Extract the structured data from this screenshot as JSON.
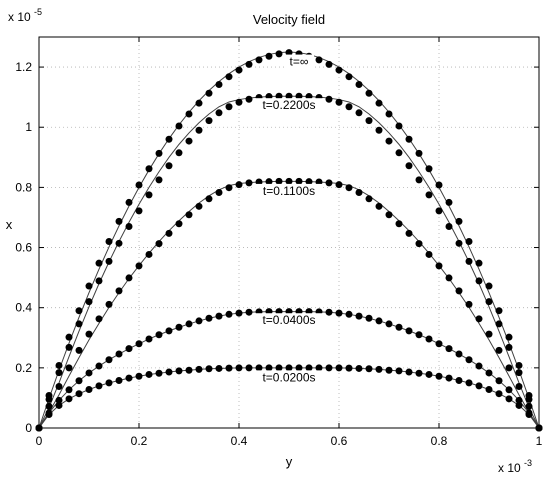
{
  "chart_data": {
    "type": "line",
    "title": "Velocity field",
    "xlabel": "y",
    "ylabel": "x",
    "xlim": [
      0,
      1
    ],
    "ylim": [
      0,
      1.3
    ],
    "x_multiplier": "x 10",
    "x_multiplier_exp": "-3",
    "y_multiplier": "x 10",
    "y_multiplier_exp": "-5",
    "x_ticks": [
      0,
      0.2,
      0.4,
      0.6,
      0.8,
      1
    ],
    "x_tick_labels": [
      "0",
      "0.2",
      "0.4",
      "0.6",
      "0.8",
      "1"
    ],
    "y_ticks": [
      0,
      0.2,
      0.4,
      0.6,
      0.8,
      1,
      1.2
    ],
    "y_tick_labels": [
      "0",
      "0.2",
      "0.4",
      "0.6",
      "0.8",
      "1",
      "1.2"
    ],
    "grid": "dotted",
    "legend": "none",
    "x": [
      0,
      0.02,
      0.04,
      0.06,
      0.08,
      0.1,
      0.12,
      0.14,
      0.16,
      0.18,
      0.2,
      0.22,
      0.24,
      0.26,
      0.28,
      0.3,
      0.32,
      0.34,
      0.36,
      0.38,
      0.4,
      0.42,
      0.44,
      0.46,
      0.48,
      0.5,
      0.52,
      0.54,
      0.56,
      0.58,
      0.6,
      0.62,
      0.64,
      0.66,
      0.68,
      0.7,
      0.72,
      0.74,
      0.76,
      0.78,
      0.8,
      0.82,
      0.84,
      0.86,
      0.88,
      0.9,
      0.92,
      0.94,
      0.96,
      0.98,
      1
    ],
    "series": [
      {
        "name": "t=∞",
        "line_values": [
          0,
          0.098,
          0.192,
          0.282,
          0.368,
          0.45,
          0.528,
          0.602,
          0.672,
          0.738,
          0.8,
          0.858,
          0.912,
          0.962,
          1.008,
          1.05,
          1.088,
          1.122,
          1.152,
          1.178,
          1.2,
          1.218,
          1.232,
          1.242,
          1.248,
          1.25,
          1.248,
          1.242,
          1.232,
          1.218,
          1.2,
          1.178,
          1.152,
          1.122,
          1.088,
          1.05,
          1.008,
          0.962,
          0.912,
          0.858,
          0.8,
          0.738,
          0.672,
          0.602,
          0.528,
          0.45,
          0.368,
          0.282,
          0.192,
          0.098,
          0
        ],
        "marker_values": [
          0,
          0.108,
          0.208,
          0.302,
          0.39,
          0.472,
          0.548,
          0.62,
          0.687,
          0.75,
          0.808,
          0.862,
          0.913,
          0.96,
          1.004,
          1.044,
          1.08,
          1.113,
          1.142,
          1.168,
          1.19,
          1.209,
          1.224,
          1.236,
          1.244,
          1.248,
          1.244,
          1.236,
          1.224,
          1.209,
          1.19,
          1.168,
          1.142,
          1.113,
          1.08,
          1.044,
          1.004,
          0.96,
          0.913,
          0.862,
          0.808,
          0.75,
          0.687,
          0.62,
          0.548,
          0.472,
          0.39,
          0.302,
          0.208,
          0.108,
          0
        ],
        "label": "t=∞",
        "label_x": 0.52,
        "label_y": 1.205
      },
      {
        "name": "t=0.2200s",
        "line_values": [
          0,
          0.068,
          0.15,
          0.237,
          0.322,
          0.403,
          0.48,
          0.552,
          0.62,
          0.684,
          0.744,
          0.8,
          0.852,
          0.9,
          0.943,
          0.981,
          1.015,
          1.044,
          1.068,
          1.084,
          1.092,
          1.097,
          1.1,
          1.102,
          1.103,
          1.103,
          1.103,
          1.102,
          1.1,
          1.097,
          1.092,
          1.084,
          1.068,
          1.044,
          1.015,
          0.981,
          0.943,
          0.9,
          0.852,
          0.8,
          0.744,
          0.684,
          0.62,
          0.552,
          0.48,
          0.403,
          0.322,
          0.237,
          0.15,
          0.068,
          0
        ],
        "marker_values": [
          0,
          0.095,
          0.184,
          0.268,
          0.346,
          0.42,
          0.489,
          0.554,
          0.614,
          0.67,
          0.722,
          0.775,
          0.825,
          0.872,
          0.915,
          0.954,
          0.99,
          1.022,
          1.048,
          1.068,
          1.083,
          1.093,
          1.099,
          1.102,
          1.103,
          1.103,
          1.103,
          1.102,
          1.099,
          1.093,
          1.083,
          1.068,
          1.048,
          1.022,
          0.99,
          0.954,
          0.915,
          0.872,
          0.825,
          0.775,
          0.722,
          0.67,
          0.614,
          0.554,
          0.489,
          0.42,
          0.346,
          0.268,
          0.184,
          0.095,
          0
        ],
        "label": "t=0.2200s",
        "label_x": 0.5,
        "label_y": 1.06
      },
      {
        "name": "t=0.1100s",
        "line_values": [
          0,
          0.052,
          0.11,
          0.173,
          0.234,
          0.293,
          0.348,
          0.401,
          0.45,
          0.497,
          0.54,
          0.581,
          0.62,
          0.656,
          0.689,
          0.72,
          0.748,
          0.772,
          0.792,
          0.806,
          0.813,
          0.816,
          0.818,
          0.819,
          0.82,
          0.82,
          0.82,
          0.819,
          0.818,
          0.816,
          0.813,
          0.806,
          0.792,
          0.772,
          0.748,
          0.72,
          0.689,
          0.656,
          0.62,
          0.581,
          0.54,
          0.497,
          0.45,
          0.401,
          0.348,
          0.293,
          0.234,
          0.173,
          0.11,
          0.052,
          0
        ],
        "marker_values": [
          0,
          0.072,
          0.138,
          0.2,
          0.258,
          0.312,
          0.363,
          0.411,
          0.456,
          0.499,
          0.539,
          0.577,
          0.613,
          0.647,
          0.679,
          0.709,
          0.737,
          0.762,
          0.783,
          0.799,
          0.809,
          0.815,
          0.818,
          0.819,
          0.82,
          0.82,
          0.82,
          0.819,
          0.818,
          0.815,
          0.809,
          0.799,
          0.783,
          0.762,
          0.737,
          0.709,
          0.679,
          0.647,
          0.613,
          0.577,
          0.539,
          0.499,
          0.456,
          0.411,
          0.363,
          0.312,
          0.258,
          0.2,
          0.138,
          0.072,
          0
        ],
        "label": "t=0.1100s",
        "label_x": 0.5,
        "label_y": 0.775
      },
      {
        "name": "t=0.0400s",
        "line_values": [
          0,
          0.05,
          0.092,
          0.127,
          0.157,
          0.183,
          0.206,
          0.227,
          0.246,
          0.264,
          0.28,
          0.296,
          0.31,
          0.323,
          0.335,
          0.346,
          0.356,
          0.365,
          0.372,
          0.378,
          0.382,
          0.385,
          0.386,
          0.387,
          0.387,
          0.387,
          0.387,
          0.387,
          0.386,
          0.385,
          0.382,
          0.378,
          0.372,
          0.365,
          0.356,
          0.346,
          0.335,
          0.323,
          0.31,
          0.296,
          0.28,
          0.264,
          0.246,
          0.227,
          0.206,
          0.183,
          0.157,
          0.127,
          0.092,
          0.05,
          0
        ],
        "marker_values": [
          0,
          0.05,
          0.092,
          0.127,
          0.157,
          0.183,
          0.206,
          0.227,
          0.246,
          0.264,
          0.28,
          0.296,
          0.31,
          0.323,
          0.335,
          0.346,
          0.356,
          0.365,
          0.372,
          0.378,
          0.382,
          0.385,
          0.386,
          0.387,
          0.387,
          0.387,
          0.387,
          0.387,
          0.386,
          0.385,
          0.382,
          0.378,
          0.372,
          0.365,
          0.356,
          0.346,
          0.335,
          0.323,
          0.31,
          0.296,
          0.28,
          0.264,
          0.246,
          0.227,
          0.206,
          0.183,
          0.157,
          0.127,
          0.092,
          0.05,
          0
        ],
        "label": "t=0.0400s",
        "label_x": 0.5,
        "label_y": 0.345
      },
      {
        "name": "t=0.0200s",
        "line_values": [
          0,
          0.045,
          0.075,
          0.097,
          0.114,
          0.128,
          0.14,
          0.15,
          0.158,
          0.166,
          0.172,
          0.178,
          0.182,
          0.186,
          0.19,
          0.192,
          0.195,
          0.197,
          0.198,
          0.199,
          0.2,
          0.2,
          0.2,
          0.2,
          0.2,
          0.2,
          0.2,
          0.2,
          0.2,
          0.2,
          0.2,
          0.199,
          0.198,
          0.197,
          0.195,
          0.192,
          0.19,
          0.186,
          0.182,
          0.178,
          0.172,
          0.166,
          0.158,
          0.15,
          0.14,
          0.128,
          0.114,
          0.097,
          0.075,
          0.045,
          0
        ],
        "marker_values": [
          0,
          0.045,
          0.075,
          0.097,
          0.114,
          0.128,
          0.14,
          0.15,
          0.158,
          0.166,
          0.172,
          0.178,
          0.182,
          0.186,
          0.19,
          0.192,
          0.195,
          0.197,
          0.198,
          0.199,
          0.2,
          0.2,
          0.2,
          0.2,
          0.2,
          0.2,
          0.2,
          0.2,
          0.2,
          0.2,
          0.2,
          0.199,
          0.198,
          0.197,
          0.195,
          0.192,
          0.19,
          0.186,
          0.182,
          0.178,
          0.172,
          0.166,
          0.158,
          0.15,
          0.14,
          0.128,
          0.114,
          0.097,
          0.075,
          0.045,
          0
        ],
        "label": "t=0.0200s",
        "label_x": 0.5,
        "label_y": 0.155
      }
    ],
    "colors": {
      "line": "#404040",
      "marker": "#000000",
      "grid": "#b0b0b0",
      "axes": "#000000"
    }
  }
}
